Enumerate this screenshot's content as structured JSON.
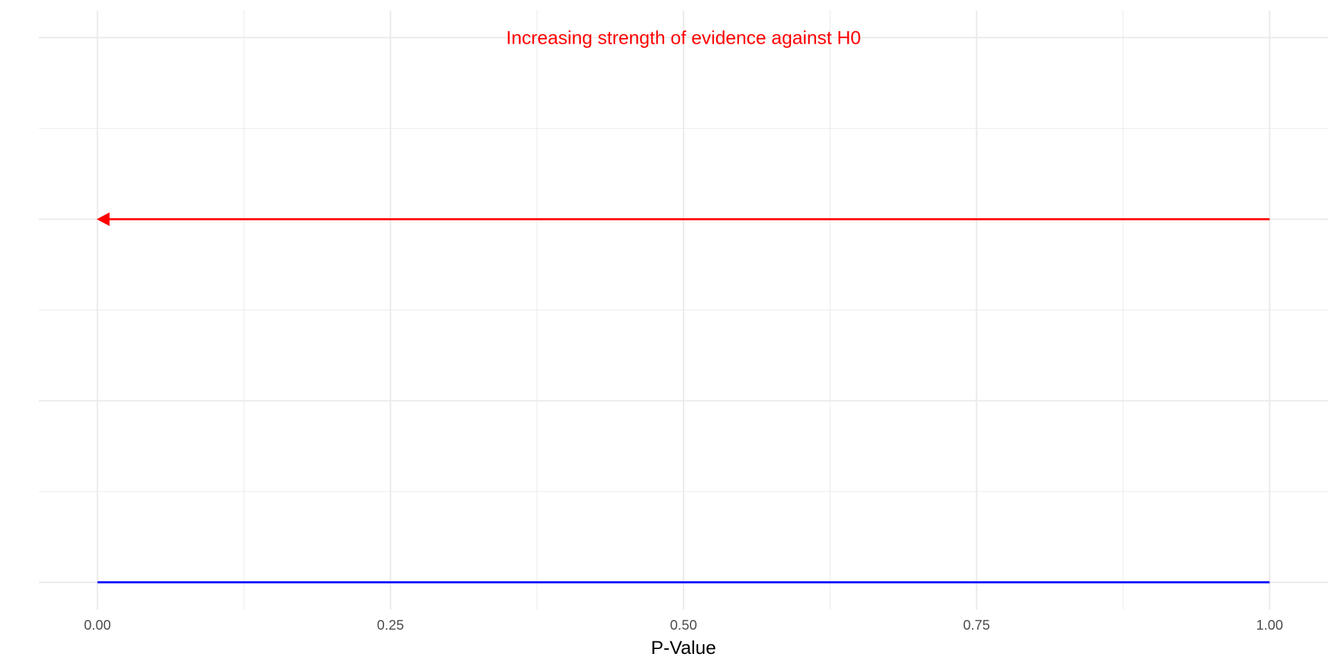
{
  "chart_data": {
    "type": "line",
    "title": "",
    "xlabel": "P-Value",
    "ylabel": "",
    "xlim": [
      -0.05,
      1.05
    ],
    "ylim": [
      -0.15,
      3.15
    ],
    "x_major_ticks": [
      0,
      0.25,
      0.5,
      0.75,
      1
    ],
    "x_tick_labels": [
      "0.00",
      "0.25",
      "0.50",
      "0.75",
      "1.00"
    ],
    "x_minor_ticks": [
      0.125,
      0.375,
      0.625,
      0.875
    ],
    "y_major_gridlines": [
      0,
      1,
      2,
      3
    ],
    "y_minor_gridlines": [
      0.5,
      1.5,
      2.5
    ],
    "y_tick_labels_shown": false,
    "grid": true,
    "series": [
      {
        "kind": "segment",
        "x": [
          0,
          1
        ],
        "y": [
          0,
          0
        ],
        "color": "#0000ff"
      },
      {
        "kind": "arrow",
        "x": [
          1,
          0
        ],
        "y": [
          2,
          2
        ],
        "color": "#ff0000",
        "arrowhead": "end"
      }
    ],
    "annotations": [
      {
        "text": "Increasing strength of evidence against H0",
        "x": 0.5,
        "y": 3,
        "color": "#ff0000"
      }
    ]
  }
}
